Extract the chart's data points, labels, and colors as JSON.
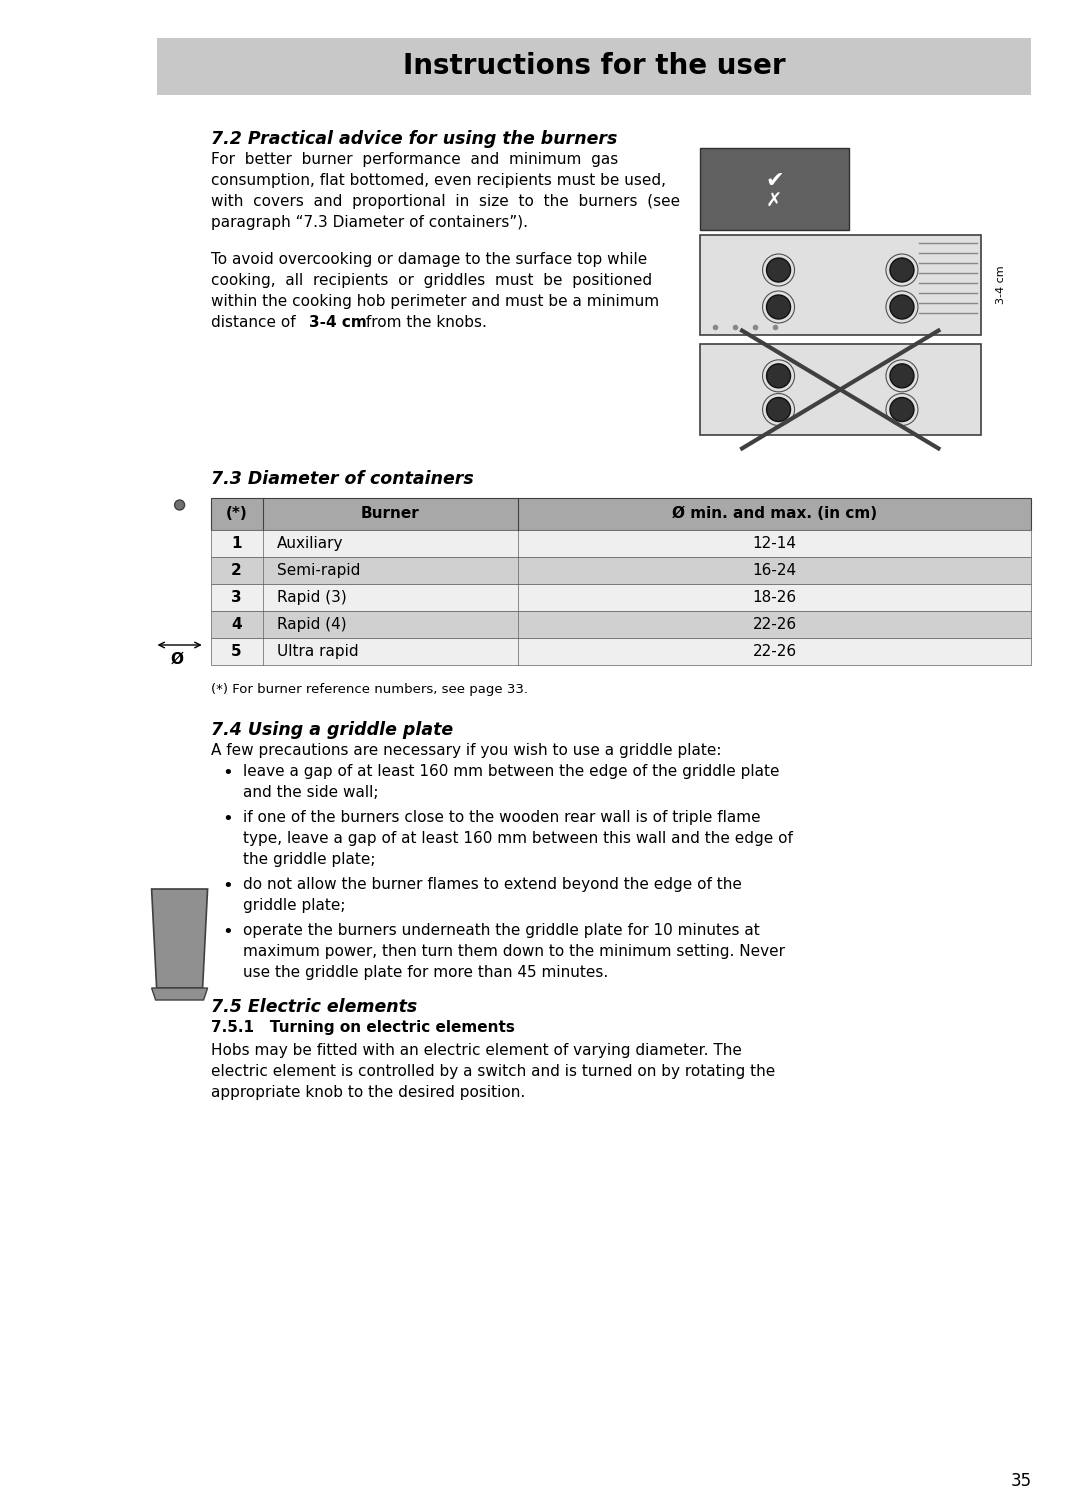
{
  "title": "Instructions for the user",
  "title_bg": "#c8c8c8",
  "page_bg": "#ffffff",
  "page_number": "35",
  "section_72_title": "7.2 Practical advice for using the burners",
  "section_73_title": "7.3 Diameter of containers",
  "table_header_num": "(*)",
  "table_header_burner": "Burner",
  "table_header_diam": "Ø min. and max. (in cm)",
  "table_rows": [
    {
      "num": "1",
      "burner": "Auxiliary",
      "diam": "12-14"
    },
    {
      "num": "2",
      "burner": "Semi-rapid",
      "diam": "16-24"
    },
    {
      "num": "3",
      "burner": "Rapid (3)",
      "diam": "18-26"
    },
    {
      "num": "4",
      "burner": "Rapid (4)",
      "diam": "22-26"
    },
    {
      "num": "5",
      "burner": "Ultra rapid",
      "diam": "22-26"
    }
  ],
  "table_note": "(*) For burner reference numbers, see page 33.",
  "table_header_bg": "#a8a8a8",
  "table_row_dark": "#d0d0d0",
  "table_row_light": "#efefef",
  "section_74_title": "7.4 Using a griddle plate",
  "section_74_intro": "A few precautions are necessary if you wish to use a griddle plate:",
  "section_74_bullets": [
    "leave a gap of at least 160 mm between the edge of the griddle plate\nand the side wall;",
    "if one of the burners close to the wooden rear wall is of triple flame\ntype, leave a gap of at least 160 mm between this wall and the edge of\nthe griddle plate;",
    "do not allow the burner flames to extend beyond the edge of the\ngriddle plate;",
    "operate the burners underneath the griddle plate for 10 minutes at\nmaximum power, then turn them down to the minimum setting. Never\nuse the griddle plate for more than 45 minutes."
  ],
  "section_75_title": "7.5 Electric elements",
  "section_751_subtitle": "7.5.1   Turning on electric elements",
  "section_751_lines": [
    "Hobs may be fitted with an electric element of varying diameter. The",
    "electric element is controlled by a switch and is turned on by rotating the",
    "appropriate knob to the desired position."
  ],
  "para1_lines": [
    "For  better  burner  performance  and  minimum  gas",
    "consumption, flat bottomed, even recipients must be used,",
    "with  covers  and  proportional  in  size  to  the  burners  (see",
    "paragraph “7.3 Diameter of containers”)."
  ],
  "para2_lines": [
    "To avoid overcooking or damage to the surface top while",
    "cooking,  all  recipients  or  griddles  must  be  positioned",
    "within the cooking hob perimeter and must be a minimum",
    "distance of "
  ],
  "bold_text": "3-4 cm",
  "para2_last_suffix": " from the knobs.",
  "ml": 0.145,
  "mr": 0.955,
  "cl": 0.195,
  "text_color": "#000000"
}
